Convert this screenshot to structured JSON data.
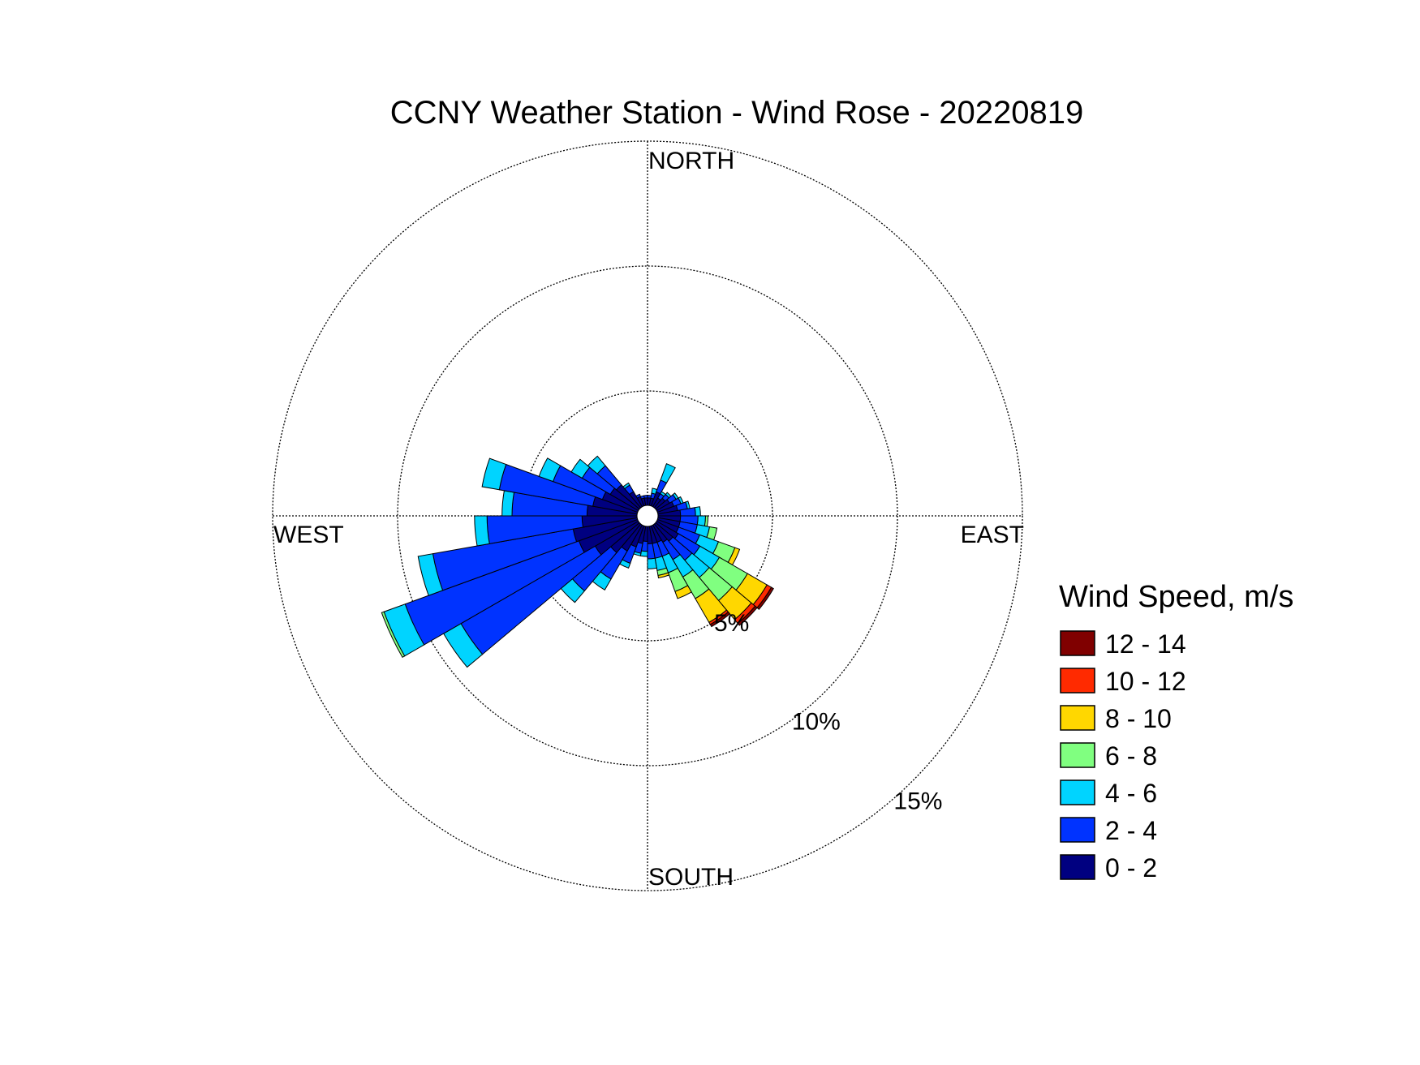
{
  "chart_data": {
    "type": "polar-bar",
    "title": "CCNY Weather Station - Wind Rose - 20220819",
    "directions": {
      "north": "NORTH",
      "south": "SOUTH",
      "east": "EAST",
      "west": "WEST"
    },
    "radial_ticks": [
      {
        "value": 5,
        "label": "5%"
      },
      {
        "value": 10,
        "label": "10%"
      },
      {
        "value": 15,
        "label": "15%"
      }
    ],
    "r_max": 15,
    "sector_width_deg": 10,
    "legend": {
      "title": "Wind Speed, m/s",
      "placement": "right",
      "bins": [
        {
          "label": "12 - 14",
          "color": "#800000"
        },
        {
          "label": "10 - 12",
          "color": "#ff2a00"
        },
        {
          "label": "8 - 10",
          "color": "#ffd700"
        },
        {
          "label": "6 - 8",
          "color": "#80ff80"
        },
        {
          "label": "4 - 6",
          "color": "#00d4ff"
        },
        {
          "label": "2 - 4",
          "color": "#0033ff"
        },
        {
          "label": "0 - 2",
          "color": "#000080"
        }
      ]
    },
    "speed_bins": [
      "0 - 2",
      "2 - 4",
      "4 - 6",
      "6 - 8",
      "8 - 10",
      "10 - 12",
      "12 - 14"
    ],
    "sectors": [
      {
        "dir": 15,
        "values": [
          0.3,
          0.2,
          0.2,
          0,
          0,
          0,
          0
        ]
      },
      {
        "dir": 25,
        "values": [
          0.6,
          0.5,
          0.7,
          0,
          0,
          0,
          0
        ]
      },
      {
        "dir": 35,
        "values": [
          0.4,
          0.2,
          0.1,
          0,
          0,
          0,
          0
        ]
      },
      {
        "dir": 45,
        "values": [
          0.5,
          0.2,
          0.1,
          0,
          0,
          0,
          0
        ]
      },
      {
        "dir": 55,
        "values": [
          0.6,
          0.3,
          0.1,
          0,
          0,
          0,
          0
        ]
      },
      {
        "dir": 65,
        "values": [
          0.7,
          0.3,
          0.1,
          0,
          0,
          0,
          0
        ]
      },
      {
        "dir": 75,
        "values": [
          0.8,
          0.4,
          0.1,
          0,
          0,
          0,
          0
        ]
      },
      {
        "dir": 85,
        "values": [
          0.9,
          0.6,
          0.2,
          0,
          0,
          0,
          0
        ]
      },
      {
        "dir": 95,
        "values": [
          0.9,
          0.7,
          0.3,
          0.1,
          0,
          0,
          0
        ]
      },
      {
        "dir": 105,
        "values": [
          0.9,
          0.7,
          0.5,
          0.3,
          0,
          0,
          0
        ]
      },
      {
        "dir": 115,
        "values": [
          0.9,
          0.9,
          0.8,
          0.7,
          0.2,
          0,
          0
        ]
      },
      {
        "dir": 125,
        "values": [
          1.0,
          1.0,
          0.9,
          1.3,
          0.9,
          0.2,
          0.1
        ]
      },
      {
        "dir": 135,
        "values": [
          0.9,
          1.0,
          0.9,
          1.2,
          1.0,
          0.2,
          0.1
        ]
      },
      {
        "dir": 145,
        "values": [
          0.8,
          0.8,
          0.8,
          1.0,
          1.1,
          0.1,
          0.1
        ]
      },
      {
        "dir": 155,
        "values": [
          0.7,
          0.6,
          0.7,
          0.8,
          0.3,
          0,
          0
        ]
      },
      {
        "dir": 165,
        "values": [
          0.7,
          0.6,
          0.5,
          0.2,
          0.1,
          0,
          0
        ]
      },
      {
        "dir": 175,
        "values": [
          0.7,
          0.6,
          0.4,
          0,
          0,
          0,
          0
        ]
      },
      {
        "dir": 185,
        "values": [
          0.6,
          0.4,
          0.2,
          0,
          0,
          0,
          0
        ]
      },
      {
        "dir": 195,
        "values": [
          0.7,
          0.4,
          0.1,
          0,
          0,
          0,
          0
        ]
      },
      {
        "dir": 205,
        "values": [
          0.9,
          0.7,
          0.2,
          0,
          0,
          0,
          0
        ]
      },
      {
        "dir": 215,
        "values": [
          1.2,
          1.3,
          0.5,
          0,
          0,
          0,
          0
        ]
      },
      {
        "dir": 225,
        "values": [
          1.5,
          2.0,
          0.6,
          0,
          0,
          0,
          0
        ]
      },
      {
        "dir": 235,
        "values": [
          2.0,
          6.2,
          0.8,
          0,
          0,
          0,
          0
        ]
      },
      {
        "dir": 245,
        "values": [
          2.5,
          7.4,
          0.9,
          0.1,
          0,
          0,
          0
        ]
      },
      {
        "dir": 255,
        "values": [
          2.6,
          5.7,
          0.6,
          0,
          0,
          0,
          0
        ]
      },
      {
        "dir": 265,
        "values": [
          2.2,
          3.8,
          0.5,
          0,
          0,
          0,
          0
        ]
      },
      {
        "dir": 275,
        "values": [
          2.0,
          3.0,
          0.4,
          0,
          0,
          0,
          0
        ]
      },
      {
        "dir": 285,
        "values": [
          1.8,
          3.8,
          0.7,
          0,
          0,
          0,
          0
        ]
      },
      {
        "dir": 295,
        "values": [
          1.5,
          2.1,
          0.6,
          0,
          0,
          0,
          0
        ]
      },
      {
        "dir": 305,
        "values": [
          1.3,
          1.3,
          0.5,
          0,
          0,
          0,
          0
        ]
      },
      {
        "dir": 315,
        "values": [
          1.2,
          1.0,
          0.5,
          0,
          0,
          0,
          0
        ]
      },
      {
        "dir": 325,
        "values": [
          0.7,
          0.3,
          0.1,
          0,
          0,
          0,
          0
        ]
      },
      {
        "dir": 335,
        "values": [
          0.4,
          0.1,
          0,
          0,
          0,
          0,
          0
        ]
      },
      {
        "dir": 345,
        "values": [
          0.3,
          0.1,
          0,
          0,
          0,
          0,
          0
        ]
      },
      {
        "dir": 355,
        "values": [
          0.3,
          0.1,
          0,
          0,
          0,
          0,
          0
        ]
      },
      {
        "dir": 5,
        "values": [
          0.3,
          0.1,
          0,
          0,
          0,
          0,
          0
        ]
      }
    ]
  }
}
